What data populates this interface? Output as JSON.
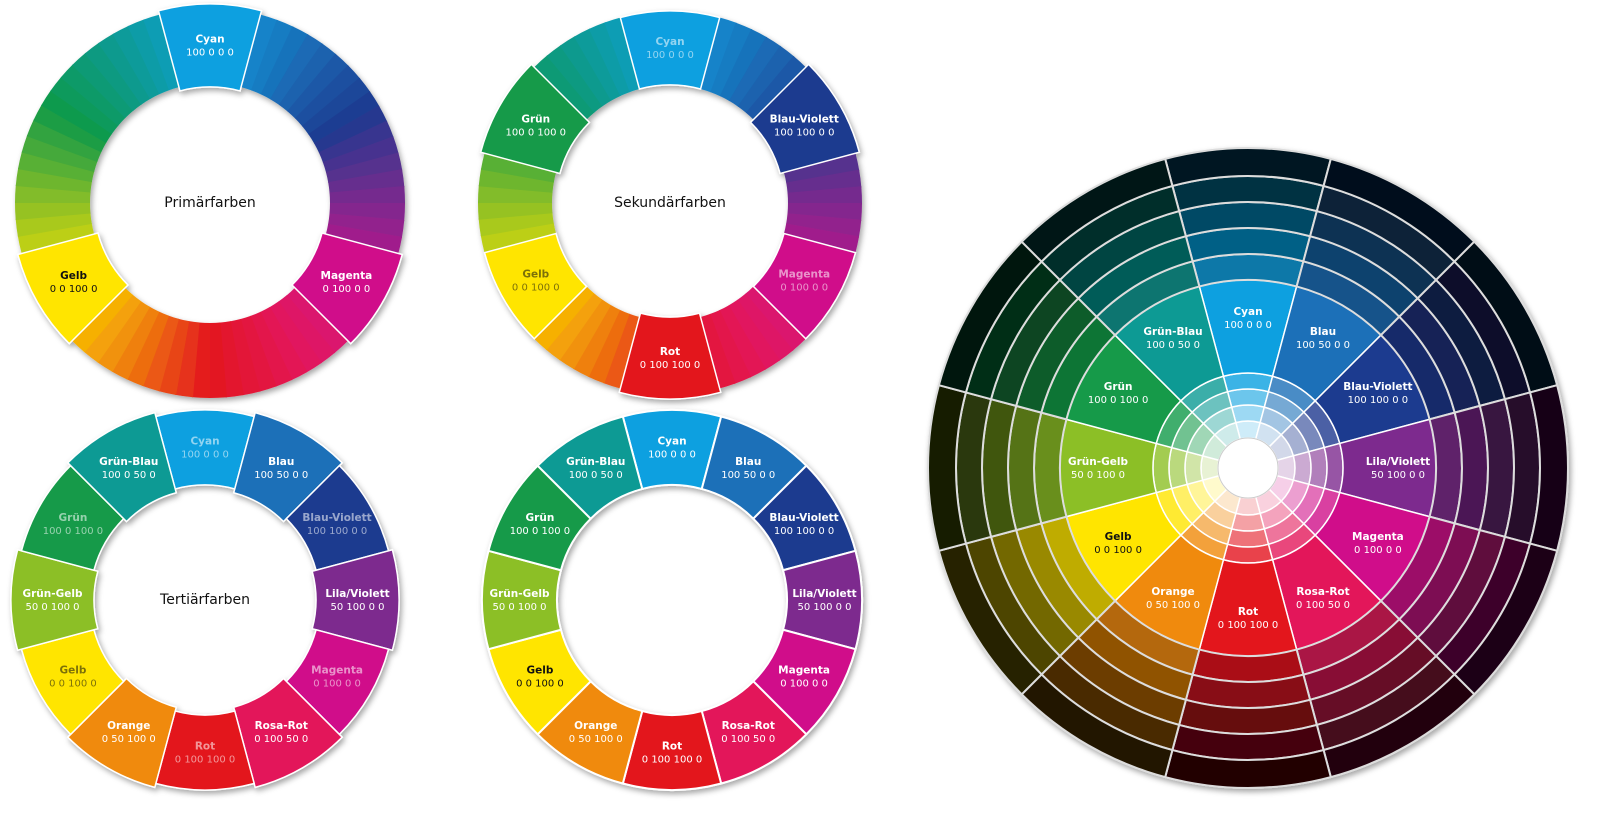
{
  "wheels": [
    {
      "title": "Primärfarben",
      "segments": [
        {
          "name": "Cyan",
          "code": "100 0 0 0"
        },
        {
          "name": "Magenta",
          "code": "0 100 0 0"
        },
        {
          "name": "Gelb",
          "code": "0 0 100 0"
        }
      ]
    },
    {
      "title": "Sekundärfarben",
      "segments": [
        {
          "name": "Cyan",
          "code": "100 0 0 0"
        },
        {
          "name": "Blau-Violett",
          "code": "100 100 0 0"
        },
        {
          "name": "Magenta",
          "code": "0 100 0 0"
        },
        {
          "name": "Rot",
          "code": "0 100 100 0"
        },
        {
          "name": "Gelb",
          "code": "0 0 100 0"
        },
        {
          "name": "Grün",
          "code": "100 0 100 0"
        }
      ]
    },
    {
      "title": "Tertiärfarben",
      "segments": [
        {
          "name": "Cyan",
          "code": "100 0 0 0"
        },
        {
          "name": "Blau",
          "code": "100 50 0 0"
        },
        {
          "name": "Blau-Violett",
          "code": "100 100 0 0"
        },
        {
          "name": "Lila/Violett",
          "code": "50 100 0 0"
        },
        {
          "name": "Magenta",
          "code": "0 100 0 0"
        },
        {
          "name": "Rosa-Rot",
          "code": "0 100 50 0"
        },
        {
          "name": "Rot",
          "code": "0 100 100 0"
        },
        {
          "name": "Orange",
          "code": "0 50 100 0"
        },
        {
          "name": "Gelb",
          "code": "0 0 100 0"
        },
        {
          "name": "Grün-Gelb",
          "code": "50 0 100 0"
        },
        {
          "name": "Grün",
          "code": "100 0 100 0"
        },
        {
          "name": "Grün-Blau",
          "code": "100 0 50 0"
        }
      ]
    },
    {
      "segments": [
        {
          "name": "Cyan",
          "code": "100 0 0 0"
        },
        {
          "name": "Blau",
          "code": "100 50 0 0"
        },
        {
          "name": "Blau-Violett",
          "code": "100 100 0 0"
        },
        {
          "name": "Lila/Violett",
          "code": "50 100 0 0"
        },
        {
          "name": "Magenta",
          "code": "0 100 0 0"
        },
        {
          "name": "Rosa-Rot",
          "code": "0 100 50 0"
        },
        {
          "name": "Rot",
          "code": "0 100 100 0"
        },
        {
          "name": "Orange",
          "code": "0 50 100 0"
        },
        {
          "name": "Gelb",
          "code": "0 0 100 0"
        },
        {
          "name": "Grün-Gelb",
          "code": "50 0 100 0"
        },
        {
          "name": "Grün",
          "code": "100 0 100 0"
        },
        {
          "name": "Grün-Blau",
          "code": "100 0 50 0"
        }
      ]
    }
  ],
  "big_wheel": {
    "segments": [
      {
        "name": "Cyan",
        "code": "100 0 0 0"
      },
      {
        "name": "Blau",
        "code": "100 50 0 0"
      },
      {
        "name": "Blau-Violett",
        "code": "100 100 0 0"
      },
      {
        "name": "Lila/Violett",
        "code": "50 100 0 0"
      },
      {
        "name": "Magenta",
        "code": "0 100 0 0"
      },
      {
        "name": "Rosa-Rot",
        "code": "0 100 50 0"
      },
      {
        "name": "Rot",
        "code": "0 100 100 0"
      },
      {
        "name": "Orange",
        "code": "0 50 100 0"
      },
      {
        "name": "Gelb",
        "code": "0 0 100 0"
      },
      {
        "name": "Grün-Gelb",
        "code": "50 0 100 0"
      },
      {
        "name": "Grün",
        "code": "100 0 100 0"
      },
      {
        "name": "Grün-Blau",
        "code": "100 0 50 0"
      }
    ]
  }
}
